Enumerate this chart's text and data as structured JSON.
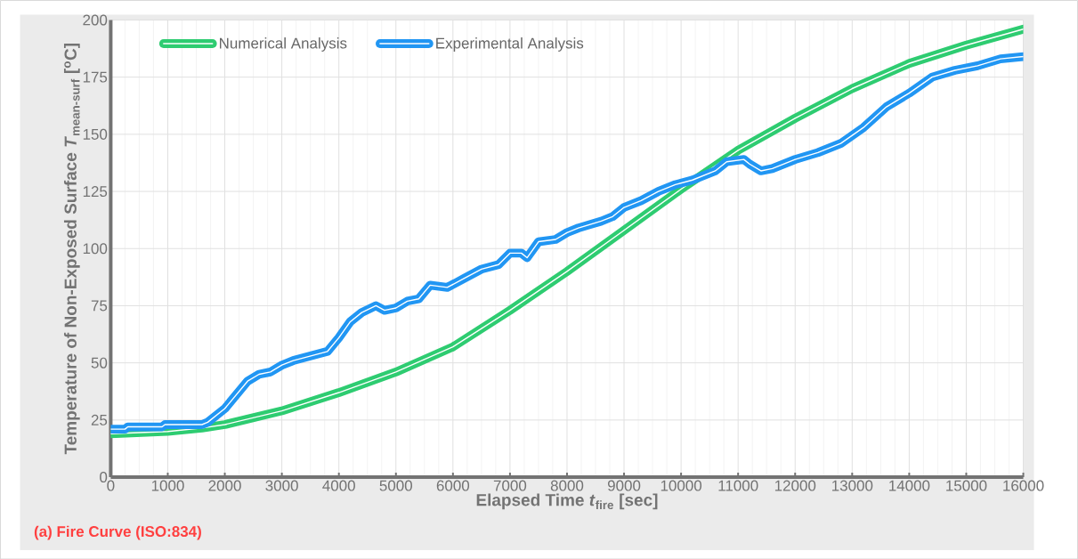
{
  "chart_data": {
    "type": "line",
    "xlabel": "Elapsed Time *t*$_{fire}$ [sec]",
    "ylabel": "Temperature of Non-Exposed Surface *T*$_{mean-surf}$ [$^{o}$C]",
    "annotations": [
      "(a) Fire Curve (ISO:834)"
    ],
    "xlim": [
      0,
      16000
    ],
    "ylim": [
      0,
      200
    ],
    "xticks": [
      0,
      1000,
      2000,
      3000,
      4000,
      5000,
      6000,
      7000,
      8000,
      9000,
      10000,
      11000,
      12000,
      13000,
      14000,
      15000,
      16000
    ],
    "yticks": [
      0,
      25,
      50,
      75,
      100,
      125,
      150,
      175,
      200
    ],
    "grid": true,
    "legend": "top left",
    "marker": "none",
    "line_style": "solid",
    "series": [
      {
        "name": "Numerical Analysis",
        "color": "#2ecc71",
        "x": [
          0,
          1000,
          1600,
          2000,
          3000,
          4000,
          5000,
          6000,
          7000,
          8000,
          9000,
          10000,
          11000,
          12000,
          13000,
          14000,
          15000,
          16000
        ],
        "values": [
          19,
          20,
          21.5,
          23,
          29,
          37,
          46,
          57,
          73,
          90,
          108,
          126,
          143,
          157,
          170,
          181,
          189,
          196
        ]
      },
      {
        "name": "Experimental Analysis",
        "color": "#2196f3",
        "x": [
          0,
          250,
          300,
          900,
          950,
          1600,
          1700,
          2000,
          2200,
          2400,
          2600,
          2800,
          3000,
          3200,
          3500,
          3800,
          4000,
          4200,
          4400,
          4650,
          4800,
          5000,
          5200,
          5400,
          5600,
          5900,
          6200,
          6500,
          6800,
          7000,
          7200,
          7300,
          7500,
          7800,
          8000,
          8200,
          8600,
          8800,
          9000,
          9300,
          9600,
          9900,
          10200,
          10600,
          10800,
          11100,
          11200,
          11400,
          11600,
          12000,
          12400,
          12800,
          13200,
          13600,
          14000,
          14400,
          14800,
          15200,
          15600,
          16000
        ],
        "values": [
          21,
          21,
          22,
          22,
          23,
          23,
          24,
          30,
          36,
          42,
          45,
          46,
          49,
          51,
          53,
          55,
          61,
          68,
          72,
          75,
          73,
          74,
          77,
          78,
          84,
          83,
          87,
          91,
          93,
          98,
          98,
          96,
          103,
          104,
          107,
          109,
          112,
          114,
          118,
          121,
          125,
          128,
          130,
          134,
          138,
          139,
          137,
          134,
          135,
          139,
          142,
          146,
          153,
          162,
          168,
          175,
          178,
          180,
          183,
          184
        ]
      }
    ]
  }
}
